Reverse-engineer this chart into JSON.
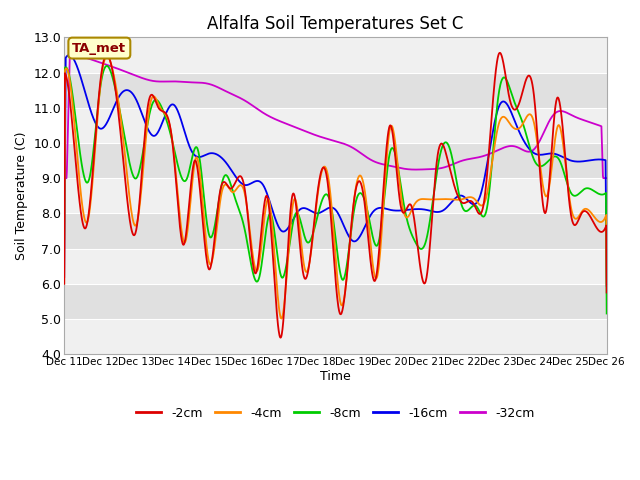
{
  "title": "Alfalfa Soil Temperatures Set C",
  "xlabel": "Time",
  "ylabel": "Soil Temperature (C)",
  "ylim": [
    4.0,
    13.0
  ],
  "yticks": [
    4.0,
    5.0,
    6.0,
    7.0,
    8.0,
    9.0,
    10.0,
    11.0,
    12.0,
    13.0
  ],
  "xtick_labels": [
    "Dec 11",
    "Dec 12",
    "Dec 13",
    "Dec 14",
    "Dec 15",
    "Dec 16",
    "Dec 17",
    "Dec 18",
    "Dec 19",
    "Dec 20",
    "Dec 21",
    "Dec 22",
    "Dec 23",
    "Dec 24",
    "Dec 25",
    "Dec 26"
  ],
  "legend_labels": [
    "-2cm",
    "-4cm",
    "-8cm",
    "-16cm",
    "-32cm"
  ],
  "line_colors": [
    "#dd0000",
    "#ff8800",
    "#00cc00",
    "#0000ee",
    "#cc00cc"
  ],
  "line_widths": [
    1.3,
    1.3,
    1.3,
    1.3,
    1.3
  ],
  "annotation_text": "TA_met",
  "annotation_bg": "#ffffcc",
  "annotation_border": "#aa8800",
  "background_color": "#ffffff",
  "plot_bg_light": "#f0f0f0",
  "plot_bg_dark": "#e0e0e0",
  "title_fontsize": 12,
  "label_fontsize": 9,
  "band_colors": [
    "#f0f0f0",
    "#e0e0e0"
  ],
  "n_days": 15,
  "n_per_day": 96
}
